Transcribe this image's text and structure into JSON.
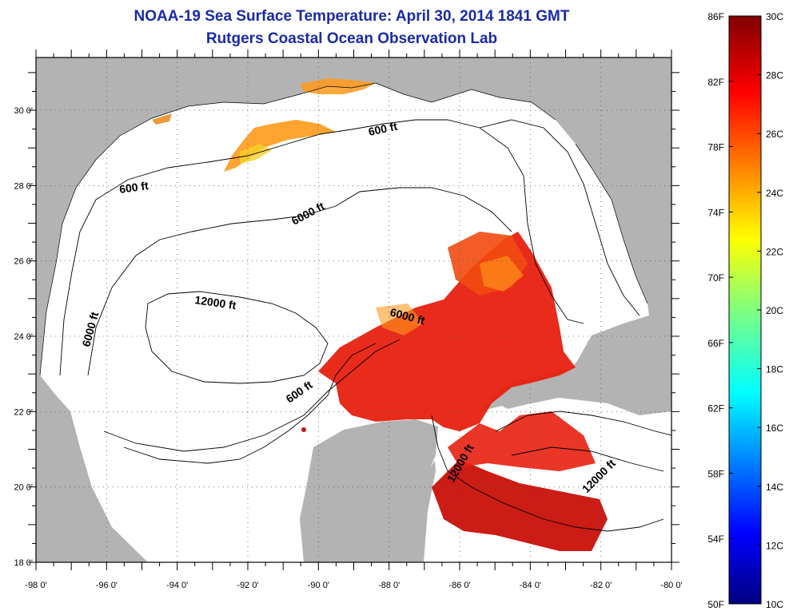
{
  "header": {
    "title": "NOAA-19 Sea Surface Temperature:  April 30, 2014 1841 GMT",
    "subtitle": "Rutgers Coastal Ocean Observation Lab"
  },
  "map": {
    "lon_labels": [
      "-98 0'",
      "-96 0'",
      "-94 0'",
      "-92 0'",
      "-90 0'",
      "-88 0'",
      "-86 0'",
      "-84 0'",
      "-82 0'",
      "-80 0'"
    ],
    "lat_labels": [
      "30 0'",
      "28 0'",
      "26 0'",
      "24 0'",
      "22 0'",
      "20 0'",
      "18 0'"
    ],
    "lon_range": [
      -98,
      -80
    ],
    "lat_range": [
      18,
      31.4
    ],
    "contour_labels": [
      "600 ft",
      "600 ft",
      "6000 ft",
      "6000 ft",
      "12000 ft",
      "6000 ft",
      "600 ft",
      "12000 ft",
      "12000 ft"
    ],
    "colors": {
      "land": "#b3b3b3",
      "ocean": "#ffffff",
      "contour": "#000000"
    }
  },
  "colorbar": {
    "f_labels": [
      "86F",
      "82F",
      "78F",
      "74F",
      "70F",
      "66F",
      "62F",
      "58F",
      "54F",
      "50F"
    ],
    "c_labels": [
      "30C",
      "28C",
      "26C",
      "24C",
      "22C",
      "20C",
      "18C",
      "16C",
      "14C",
      "12C",
      "10C"
    ],
    "range_c": [
      10,
      30
    ],
    "range_f": [
      50,
      86
    ]
  }
}
